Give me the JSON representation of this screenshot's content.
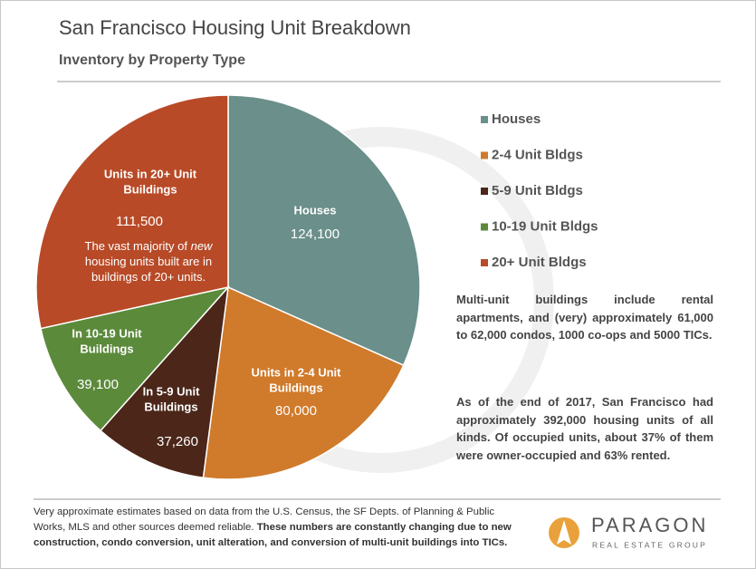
{
  "chart_data": {
    "type": "pie",
    "title": "San Francisco Housing Unit Breakdown",
    "subtitle": "Inventory by Property Type",
    "categories": [
      "Houses",
      "2-4 Unit Bldgs",
      "5-9 Unit Bldgs",
      "10-19 Unit Bldgs",
      "20+ Unit Bldgs"
    ],
    "slice_labels": [
      [
        "Houses"
      ],
      [
        "Units in 2-4 Unit",
        "Buildings"
      ],
      [
        "In 5-9 Unit",
        "Buildings"
      ],
      [
        "In 10-19 Unit",
        "Buildings"
      ],
      [
        "Units in 20+ Unit",
        "Buildings"
      ]
    ],
    "values": [
      124100,
      80000,
      37260,
      39100,
      111500
    ],
    "value_labels": [
      "124,100",
      "80,000",
      "37,260",
      "39,100",
      "111,500"
    ],
    "colors": [
      "#6b8f8a",
      "#d07a2b",
      "#4b2619",
      "#5b8a3b",
      "#b84a27"
    ],
    "annotation": [
      "The vast majority of ",
      "new",
      " housing units built are in buildings of 20+ units."
    ],
    "notes": [
      "Multi-unit buildings include rental apartments, and (very) approximately 61,000 to 62,000 condos, 1000 co-ops and 5000 TICs.",
      "As of the end of 2017, San Francisco had approximately 392,000 housing units of all kinds. Of occupied units, about 37% of them were owner-occupied and 63% rented."
    ],
    "footnote": [
      "Very approximate estimates based on data from the U.S. Census,  the SF Depts. of Planning & Public Works, MLS and other sources deemed reliable. ",
      "These numbers are constantly changing due to new construction, condo conversion, unit alteration, and conversion of multi-unit buildings into TICs."
    ],
    "logo": [
      "PARAGON",
      "REAL ESTATE GROUP"
    ]
  }
}
